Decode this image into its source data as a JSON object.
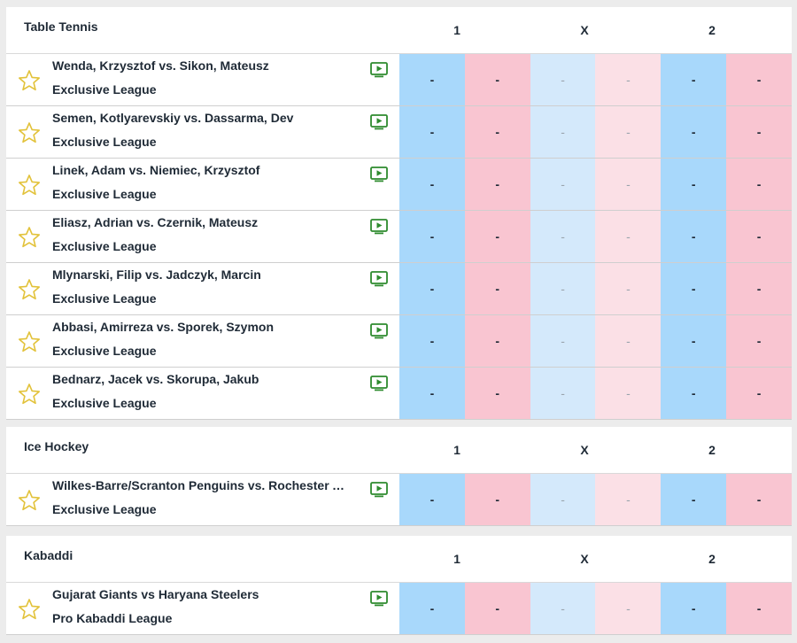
{
  "columns": {
    "home": "1",
    "draw": "X",
    "away": "2"
  },
  "sections": [
    {
      "title": "Table Tennis",
      "matches": [
        {
          "name": "Wenda, Krzysztof vs. Sikon, Mateusz",
          "league": "Exclusive League",
          "odds": [
            "-",
            "-",
            "-",
            "-",
            "-",
            "-"
          ]
        },
        {
          "name": "Semen, Kotlyarevskiy vs. Dassarma, Dev",
          "league": "Exclusive League",
          "odds": [
            "-",
            "-",
            "-",
            "-",
            "-",
            "-"
          ]
        },
        {
          "name": "Linek, Adam vs. Niemiec, Krzysztof",
          "league": "Exclusive League",
          "odds": [
            "-",
            "-",
            "-",
            "-",
            "-",
            "-"
          ]
        },
        {
          "name": "Eliasz, Adrian vs. Czernik, Mateusz",
          "league": "Exclusive League",
          "odds": [
            "-",
            "-",
            "-",
            "-",
            "-",
            "-"
          ]
        },
        {
          "name": "Mlynarski, Filip vs. Jadczyk, Marcin",
          "league": "Exclusive League",
          "odds": [
            "-",
            "-",
            "-",
            "-",
            "-",
            "-"
          ]
        },
        {
          "name": "Abbasi, Amirreza vs. Sporek, Szymon",
          "league": "Exclusive League",
          "odds": [
            "-",
            "-",
            "-",
            "-",
            "-",
            "-"
          ]
        },
        {
          "name": "Bednarz, Jacek vs. Skorupa, Jakub",
          "league": "Exclusive League",
          "odds": [
            "-",
            "-",
            "-",
            "-",
            "-",
            "-"
          ]
        }
      ]
    },
    {
      "title": "Ice Hockey",
      "matches": [
        {
          "name": "Wilkes-Barre/Scranton Penguins vs. Rochester Americans",
          "league": "Exclusive League",
          "odds": [
            "-",
            "-",
            "-",
            "-",
            "-",
            "-"
          ]
        }
      ]
    },
    {
      "title": "Kabaddi",
      "matches": [
        {
          "name": "Gujarat Giants vs Haryana Steelers",
          "league": "Pro Kabaddi League",
          "odds": [
            "-",
            "-",
            "-",
            "-",
            "-",
            "-"
          ]
        }
      ]
    }
  ],
  "icons": {
    "favorite": "star-outline-icon",
    "stream": "play-tv-icon"
  },
  "colors": {
    "back": "#a8d8fb",
    "lay": "#f9c5d1",
    "back_light": "#d4e9fb",
    "lay_light": "#fbe0e6",
    "star": "#e2c23a",
    "tv": "#2e8b2e"
  }
}
